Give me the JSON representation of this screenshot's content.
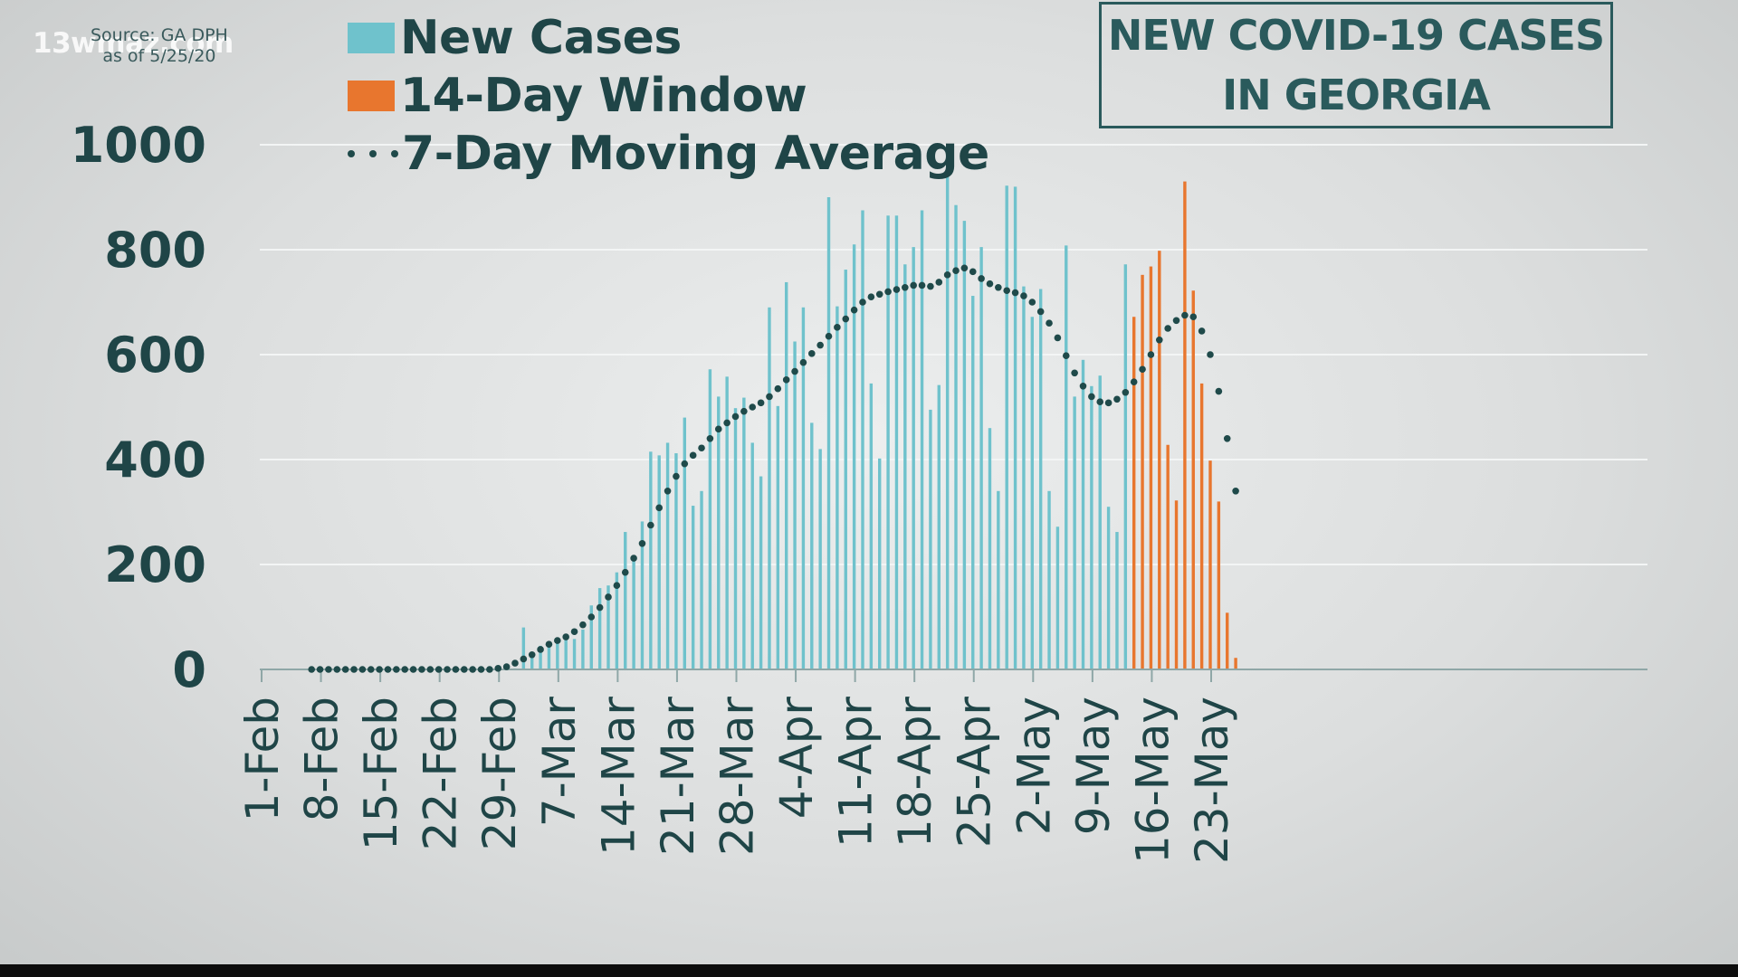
{
  "watermark": "13wmaz.com",
  "source": {
    "line1": "Source: GA DPH",
    "line2": "as of 5/25/20"
  },
  "title": {
    "line1": "NEW COVID-19 CASES",
    "line2": "IN GEORGIA"
  },
  "colors": {
    "new_cases": "#6fc2cc",
    "window_14day": "#e8762e",
    "moving_average": "#1f4a4a",
    "text": "#1f4547",
    "grid": "#f3f5f5",
    "axis": "#8fa7a7"
  },
  "chart_data": {
    "type": "bar",
    "title": "NEW COVID-19 CASES IN GEORGIA",
    "xlabel": "",
    "ylabel": "",
    "ylim": [
      0,
      1000
    ],
    "yticks": [
      0,
      200,
      400,
      600,
      800,
      1000
    ],
    "xtick_labels": [
      "1-Feb",
      "8-Feb",
      "15-Feb",
      "22-Feb",
      "29-Feb",
      "7-Mar",
      "14-Mar",
      "21-Mar",
      "28-Mar",
      "4-Apr",
      "11-Apr",
      "18-Apr",
      "25-Apr",
      "2-May",
      "9-May",
      "16-May",
      "23-May"
    ],
    "start_date": "1-Feb",
    "window_start_index": 102,
    "legend": [
      "New Cases",
      "14-Day Window",
      "7-Day Moving Average"
    ],
    "series": [
      {
        "name": "New Cases",
        "type": "bar",
        "values": [
          0,
          0,
          0,
          0,
          0,
          0,
          0,
          0,
          0,
          0,
          0,
          0,
          0,
          0,
          0,
          0,
          0,
          0,
          0,
          0,
          0,
          0,
          0,
          0,
          0,
          0,
          0,
          0,
          0,
          0,
          2,
          80,
          28,
          45,
          50,
          52,
          62,
          58,
          76,
          122,
          155,
          160,
          185,
          262,
          218,
          282,
          415,
          408,
          432,
          412,
          480,
          312,
          340,
          572,
          520,
          558,
          498,
          518,
          432,
          368,
          690,
          502,
          738,
          625,
          690,
          470,
          420,
          900,
          692,
          762,
          810,
          875,
          545,
          402,
          865,
          865,
          772,
          805,
          875,
          495,
          542,
          945,
          885,
          855,
          712,
          805,
          460,
          340,
          922,
          920,
          730,
          672,
          725,
          340,
          272,
          808,
          520,
          590,
          540,
          560,
          310,
          262,
          772,
          0,
          0,
          0,
          0,
          0,
          0,
          0,
          0,
          0,
          0,
          0,
          0,
          0,
          0
        ]
      },
      {
        "name": "14-Day Window",
        "type": "bar",
        "values": [
          0,
          0,
          0,
          0,
          0,
          0,
          0,
          0,
          0,
          0,
          0,
          0,
          0,
          0,
          0,
          0,
          0,
          0,
          0,
          0,
          0,
          0,
          0,
          0,
          0,
          0,
          0,
          0,
          0,
          0,
          0,
          0,
          0,
          0,
          0,
          0,
          0,
          0,
          0,
          0,
          0,
          0,
          0,
          0,
          0,
          0,
          0,
          0,
          0,
          0,
          0,
          0,
          0,
          0,
          0,
          0,
          0,
          0,
          0,
          0,
          0,
          0,
          0,
          0,
          0,
          0,
          0,
          0,
          0,
          0,
          0,
          0,
          0,
          0,
          0,
          0,
          0,
          0,
          0,
          0,
          0,
          0,
          0,
          0,
          0,
          0,
          0,
          0,
          0,
          0,
          0,
          0,
          0,
          0,
          0,
          0,
          0,
          0,
          0,
          0,
          0,
          0,
          0,
          672,
          752,
          768,
          798,
          428,
          322,
          930,
          722,
          545,
          398,
          320,
          108,
          22
        ]
      },
      {
        "name": "7-Day Moving Average",
        "type": "line",
        "values": [
          null,
          null,
          null,
          null,
          null,
          null,
          0,
          0,
          0,
          0,
          0,
          0,
          0,
          0,
          0,
          0,
          0,
          0,
          0,
          0,
          0,
          0,
          0,
          0,
          0,
          0,
          0,
          0,
          2,
          5,
          12,
          20,
          28,
          38,
          48,
          55,
          62,
          72,
          85,
          100,
          118,
          138,
          160,
          185,
          212,
          240,
          275,
          308,
          340,
          368,
          392,
          408,
          422,
          440,
          458,
          470,
          482,
          492,
          500,
          508,
          520,
          535,
          552,
          568,
          585,
          602,
          618,
          635,
          652,
          668,
          685,
          700,
          710,
          715,
          720,
          724,
          728,
          732,
          732,
          730,
          738,
          752,
          760,
          765,
          758,
          745,
          735,
          728,
          722,
          718,
          712,
          700,
          682,
          660,
          632,
          598,
          565,
          540,
          520,
          510,
          508,
          515,
          528,
          548,
          572,
          600,
          628,
          650,
          665,
          675,
          672,
          645,
          600,
          530,
          440,
          340
        ]
      }
    ]
  }
}
